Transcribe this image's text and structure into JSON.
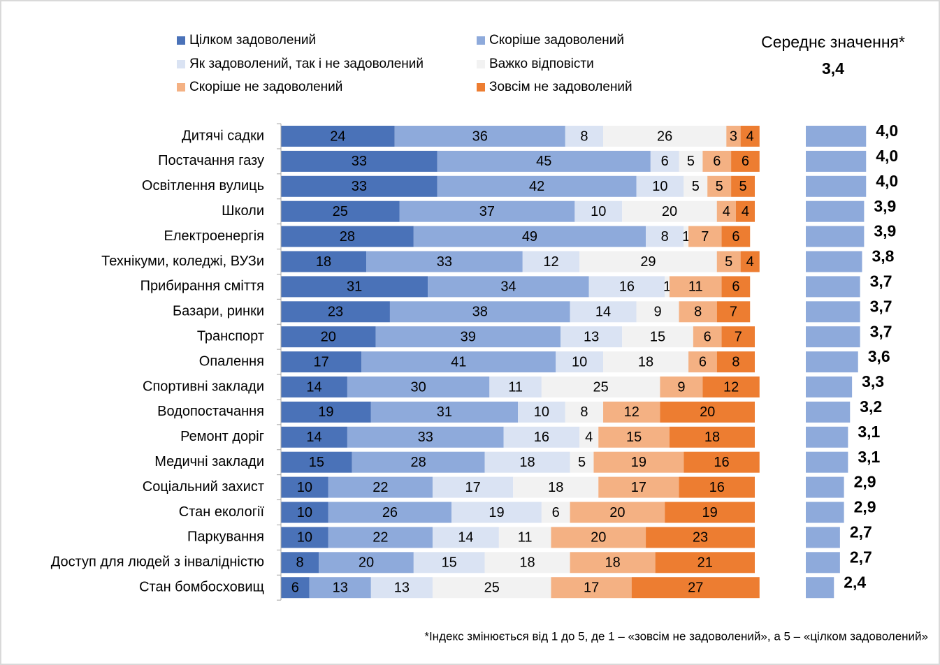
{
  "chart_data": {
    "type": "bar",
    "orientation": "horizontal",
    "stacked": true,
    "categories": [
      "Дитячі садки",
      "Постачання газу",
      "Освітлення вулиць",
      "Школи",
      "Електроенергія",
      "Технікуми, коледжі, ВУЗи",
      "Прибирання сміття",
      "Базари, ринки",
      "Транспорт",
      "Опалення",
      "Спортивні заклади",
      "Водопостачання",
      "Ремонт доріг",
      "Медичні заклади",
      "Соціальний захист",
      "Стан екології",
      "Паркування",
      "Доступ для людей з інвалідністю",
      "Стан бомбосховищ"
    ],
    "series": [
      {
        "name": "Цілком задоволений",
        "color": "#4a72b8",
        "values": [
          24,
          33,
          33,
          25,
          28,
          18,
          31,
          23,
          20,
          17,
          14,
          19,
          14,
          15,
          10,
          10,
          10,
          8,
          6
        ]
      },
      {
        "name": "Скоріше задоволений",
        "color": "#8eaadb",
        "values": [
          36,
          45,
          42,
          37,
          49,
          33,
          34,
          38,
          39,
          41,
          30,
          31,
          33,
          28,
          22,
          26,
          22,
          20,
          13
        ]
      },
      {
        "name": "Як задоволений, так і не задоволений",
        "color": "#dae3f3",
        "values": [
          8,
          6,
          10,
          10,
          8,
          12,
          16,
          14,
          13,
          10,
          11,
          10,
          16,
          18,
          17,
          19,
          14,
          15,
          13
        ]
      },
      {
        "name": "Важко відповісти",
        "color": "#f2f2f2",
        "values": [
          26,
          5,
          5,
          20,
          1,
          29,
          1,
          9,
          15,
          18,
          25,
          8,
          4,
          5,
          18,
          6,
          11,
          18,
          25
        ]
      },
      {
        "name": "Скоріше не задоволений",
        "color": "#f4b183",
        "values": [
          3,
          6,
          5,
          4,
          7,
          5,
          11,
          8,
          6,
          6,
          9,
          12,
          15,
          19,
          17,
          20,
          20,
          18,
          17
        ]
      },
      {
        "name": "Зовсім не задоволений",
        "color": "#ed7d31",
        "values": [
          4,
          6,
          5,
          4,
          6,
          4,
          6,
          7,
          7,
          8,
          12,
          20,
          18,
          16,
          16,
          19,
          23,
          21,
          27
        ]
      }
    ],
    "xlim": [
      0,
      100
    ],
    "mean_title": "Середнє значення*",
    "overall_mean": 3.4,
    "overall_mean_label": "3,4",
    "means": {
      "color": "#8eaadb",
      "xlim": [
        1,
        5
      ],
      "values": [
        4.0,
        4.0,
        4.0,
        3.9,
        3.9,
        3.8,
        3.7,
        3.7,
        3.7,
        3.6,
        3.3,
        3.2,
        3.1,
        3.1,
        2.9,
        2.9,
        2.7,
        2.7,
        2.4
      ],
      "value_labels": [
        "4,0",
        "4,0",
        "4,0",
        "3,9",
        "3,9",
        "3,8",
        "3,7",
        "3,7",
        "3,7",
        "3,6",
        "3,3",
        "3,2",
        "3,1",
        "3,1",
        "2,9",
        "2,9",
        "2,7",
        "2,7",
        "2,4"
      ]
    },
    "footnote": "*Індекс змінюється від 1 до 5, де 1 – «зовсім не задоволений», а 5 – «цілком задоволений»"
  }
}
